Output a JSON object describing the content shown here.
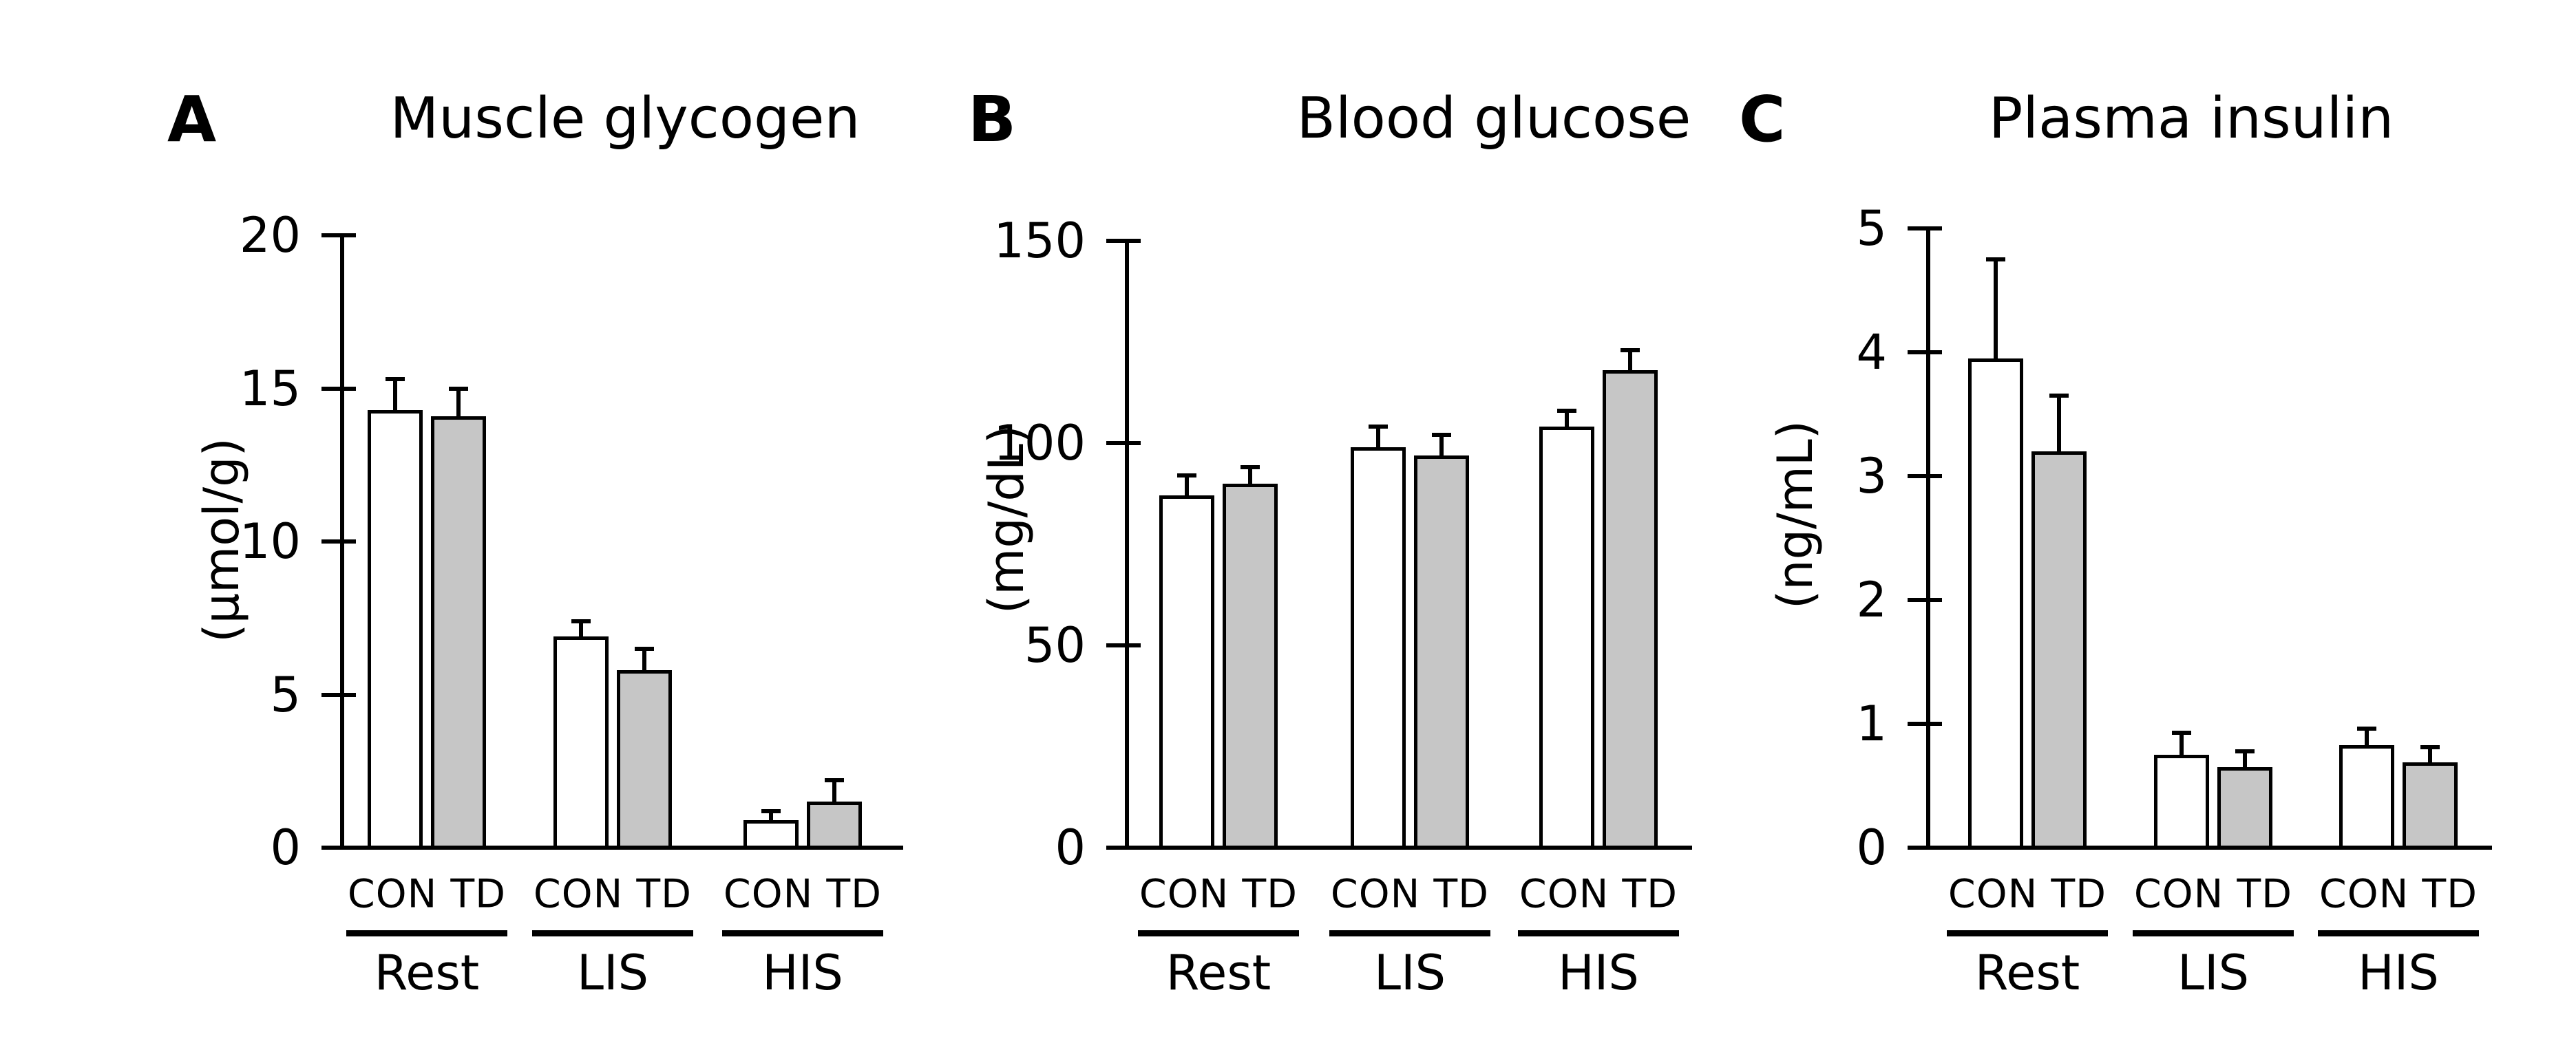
{
  "page": {
    "background": "#ffffff",
    "text_color": "#000000"
  },
  "chart_data": [
    {
      "type": "bar",
      "panel_letter": "A",
      "title": "Muscle glycogen",
      "ylabel": "(µmol/g)",
      "xlabel": "",
      "categories": [
        "Rest",
        "LIS",
        "HIS"
      ],
      "series": [
        {
          "name": "CON",
          "fill": "#ffffff",
          "values": [
            14.3,
            6.9,
            0.9
          ],
          "errors": [
            1.0,
            0.5,
            0.3
          ]
        },
        {
          "name": "TD",
          "fill": "#c6c6c6",
          "values": [
            14.1,
            5.8,
            1.5
          ],
          "errors": [
            0.9,
            0.7,
            0.7
          ]
        }
      ],
      "ylim": [
        0,
        20
      ],
      "yticks": [
        0,
        5,
        10,
        15,
        20
      ],
      "grid": false,
      "legend": "none",
      "error_bars": "upper-only"
    },
    {
      "type": "bar",
      "panel_letter": "B",
      "title": "Blood glucose",
      "ylabel": "(mg/dL)",
      "xlabel": "",
      "categories": [
        "Rest",
        "LIS",
        "HIS"
      ],
      "series": [
        {
          "name": "CON",
          "fill": "#ffffff",
          "values": [
            87,
            99,
            104
          ],
          "errors": [
            5,
            5,
            4
          ]
        },
        {
          "name": "TD",
          "fill": "#c6c6c6",
          "values": [
            90,
            97,
            118
          ],
          "errors": [
            4,
            5,
            5
          ]
        }
      ],
      "ylim": [
        0,
        150
      ],
      "yticks": [
        0,
        50,
        100,
        150
      ],
      "grid": false,
      "legend": "none",
      "error_bars": "upper-only"
    },
    {
      "type": "bar",
      "panel_letter": "C",
      "title": "Plasma insulin",
      "ylabel": "(ng/mL)",
      "xlabel": "",
      "categories": [
        "Rest",
        "LIS",
        "HIS"
      ],
      "series": [
        {
          "name": "CON",
          "fill": "#ffffff",
          "values": [
            3.95,
            0.75,
            0.83
          ],
          "errors": [
            0.8,
            0.18,
            0.13
          ]
        },
        {
          "name": "TD",
          "fill": "#c6c6c6",
          "values": [
            3.2,
            0.65,
            0.69
          ],
          "errors": [
            0.45,
            0.13,
            0.12
          ]
        }
      ],
      "ylim": [
        0,
        5
      ],
      "yticks": [
        0,
        1,
        2,
        3,
        4,
        5
      ],
      "grid": false,
      "legend": "none",
      "error_bars": "upper-only"
    }
  ]
}
